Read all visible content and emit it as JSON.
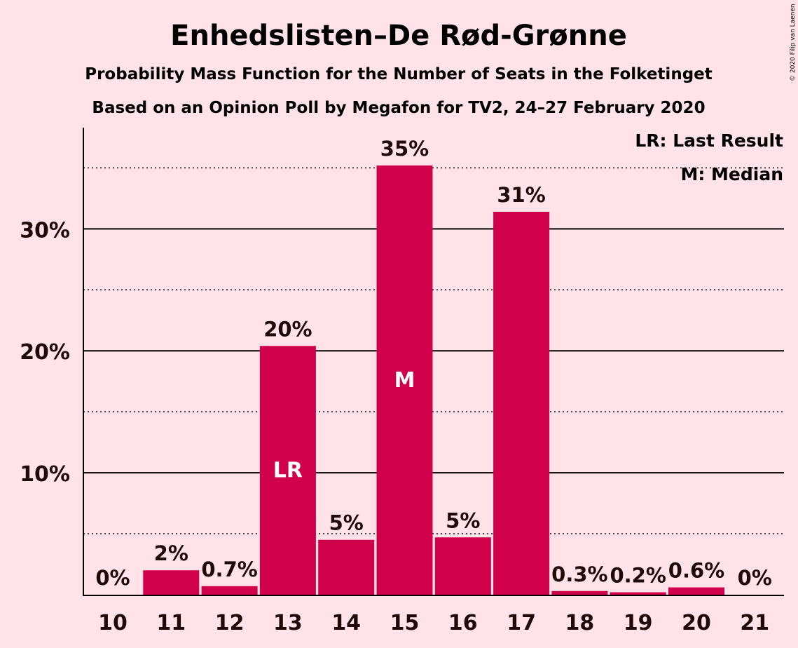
{
  "chart_data": {
    "type": "bar",
    "title": "Enhedslisten–De Rød-Grønne",
    "subtitle_1": "Probability Mass Function for the Number of Seats in the Folketinget",
    "subtitle_2": "Based on an Opinion Poll by Megafon for TV2, 24–27 February 2020",
    "xlabel": "",
    "ylabel": "",
    "categories": [
      "10",
      "11",
      "12",
      "13",
      "14",
      "15",
      "16",
      "17",
      "18",
      "19",
      "20",
      "21"
    ],
    "values": [
      0,
      2.0,
      0.7,
      20.4,
      4.5,
      35.2,
      4.7,
      31.4,
      0.3,
      0.2,
      0.6,
      0
    ],
    "data_labels": [
      "0%",
      "2%",
      "0.7%",
      "20%",
      "5%",
      "35%",
      "5%",
      "31%",
      "0.3%",
      "0.2%",
      "0.6%",
      "0%"
    ],
    "ylim": [
      0,
      38.3
    ],
    "y_ticks": [
      10,
      20,
      30
    ],
    "y_tick_labels": [
      "10%",
      "20%",
      "30%"
    ],
    "minor_gridlines": [
      5,
      15,
      25,
      35
    ],
    "bar_markers": {
      "13": "LR",
      "15": "M"
    },
    "legend": [
      "LR: Last Result",
      "M: Median"
    ],
    "legend_position": "top-right",
    "grid": true,
    "colors": {
      "bar": "#d0004a",
      "background": "#ffe3e8",
      "text": "#1f0a0a",
      "grid": "#000000"
    }
  },
  "copyright": "© 2020 Filip van Laenen"
}
